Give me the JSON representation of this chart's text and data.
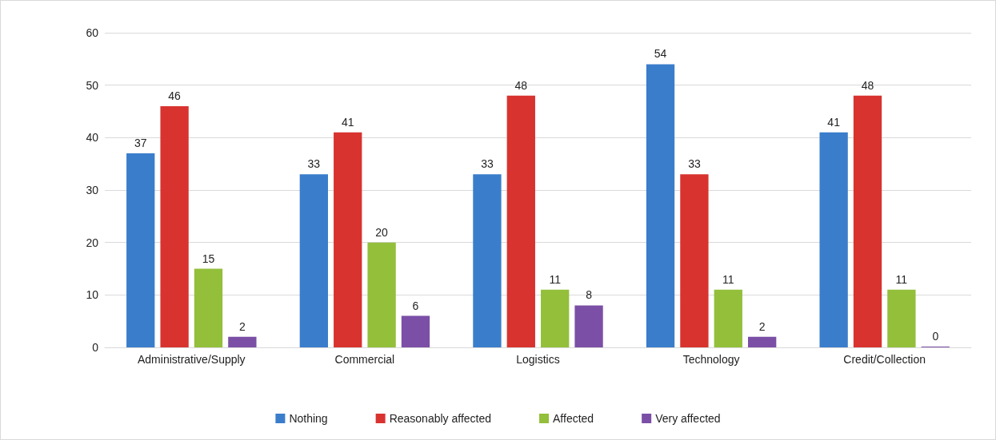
{
  "chart_data": {
    "type": "bar",
    "categories": [
      "Administrative/Supply",
      "Commercial",
      "Logistics",
      "Technology",
      "Credit/Collection"
    ],
    "series": [
      {
        "name": "Nothing",
        "color": "#3a7dcb",
        "values": [
          37,
          33,
          33,
          54,
          41
        ]
      },
      {
        "name": "Reasonably affected",
        "color": "#d8332f",
        "values": [
          46,
          41,
          48,
          33,
          48
        ]
      },
      {
        "name": "Affected",
        "color": "#93bf3b",
        "values": [
          15,
          20,
          11,
          11,
          11
        ]
      },
      {
        "name": "Very affected",
        "color": "#7b4fa6",
        "values": [
          2,
          6,
          8,
          2,
          0
        ]
      }
    ],
    "ylim": [
      0,
      60
    ],
    "yticks": [
      0,
      10,
      20,
      30,
      40,
      50,
      60
    ],
    "grid": "y",
    "legend": "bottom",
    "data_labels": true
  }
}
